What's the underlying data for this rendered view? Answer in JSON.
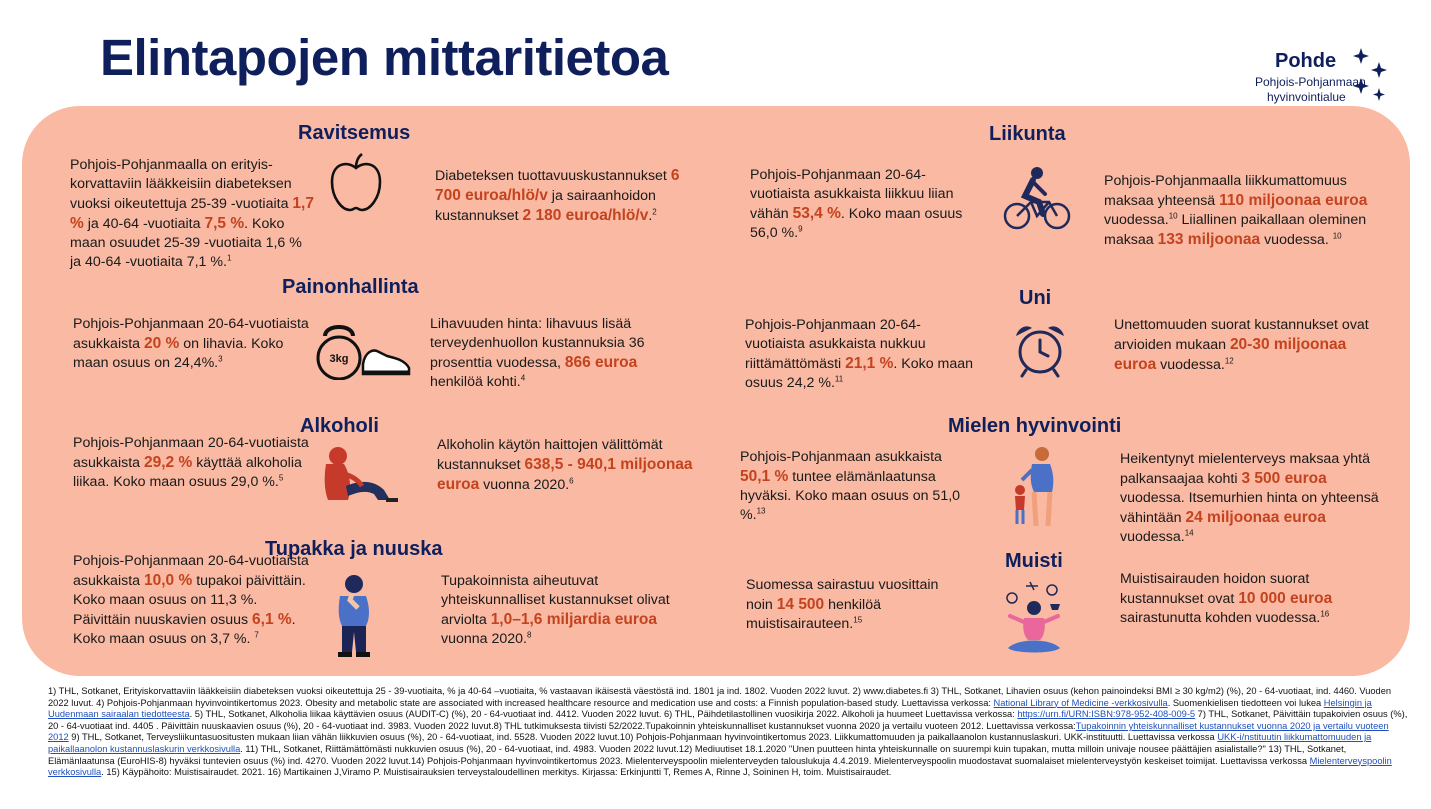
{
  "title": "Elintapojen mittaritietoa",
  "logo": {
    "name": "Pohde",
    "line1": "Pohjois-Pohjanmaan",
    "line2": "hyvinvointialue"
  },
  "colors": {
    "panel": "#f9b9a3",
    "navy": "#0f1f5c",
    "highlight": "#c4431f"
  },
  "sections": {
    "ravitsemus": {
      "title": "Ravitsemus",
      "icon": "apple-icon",
      "left": {
        "t1": "Pohjois-Pohjanmaalla on erityis-korvattaviin lääkkeisiin diabeteksen vuoksi oikeutettuja 25-39 -vuotiaita ",
        "h1": "1,7 %",
        "t2": " ja 40-64 -vuotiaita ",
        "h2": "7,5 %",
        "t3": ". Koko maan osuudet 25-39 -vuotiaita 1,6 % ja 40-64 -vuotiaita 7,1 %.",
        "sup": "1"
      },
      "right": {
        "t1": "Diabeteksen tuottavuuskustannukset ",
        "h1": "6 700 euroa/hlö/v",
        "t2": " ja sairaanhoidon kustannukset ",
        "h2": "2 180 euroa/hlö/v",
        "t3": ".",
        "sup": "2"
      }
    },
    "painonhallinta": {
      "title": "Painonhallinta",
      "icon": "kettlebell-shoe-icon",
      "weight_label": "3kg",
      "left": {
        "t1": "Pohjois-Pohjanmaan 20-64-vuotiaista asukkaista ",
        "h1": "20 %",
        "t2": " on lihavia. Koko maan osuus on 24,4%.",
        "sup": "3"
      },
      "right": {
        "t1": "Lihavuuden hinta: lihavuus lisää terveydenhuollon kustannuksia 36 prosenttia vuodessa, ",
        "h1": "866 euroa",
        "t2": " henkilöä kohti.",
        "sup": "4"
      }
    },
    "alkoholi": {
      "title": "Alkoholi",
      "icon": "sitting-person-icon",
      "left": {
        "t1": "Pohjois-Pohjanmaan 20-64-vuotiaista asukkaista ",
        "h1": "29,2 %",
        "t2": " käyttää alkoholia liikaa. Koko maan osuus 29,0 %.",
        "sup": "5"
      },
      "right": {
        "t1": "Alkoholin käytön haittojen välittömät kustannukset ",
        "h1": "638,5 - 940,1 miljoonaa euroa",
        "t2": " vuonna 2020.",
        "sup": "6"
      }
    },
    "tupakka": {
      "title": "Tupakka ja nuuska",
      "icon": "thinking-person-icon",
      "left": {
        "t1": "Pohjois-Pohjanmaan 20-64-vuotiaista asukkaista ",
        "h1": "10,0 %",
        "t2": " tupakoi päivittäin. Koko maan osuus on 11,3 %. Päivittäin nuuskavien osuus ",
        "h2": "6,1 %",
        "t3": ". Koko maan osuus on 3,7 %. ",
        "sup": "7"
      },
      "right": {
        "t1": "Tupakoinnista aiheutuvat yhteiskunnalliset kustannukset olivat arviolta ",
        "h1": "1,0–1,6 miljardia euroa",
        "t2": " vuonna 2020.",
        "sup": "8"
      }
    },
    "liikunta": {
      "title": "Liikunta",
      "icon": "cyclist-icon",
      "left": {
        "t1": "Pohjois-Pohjanmaan 20-64-vuotiaista asukkaista liikkuu liian vähän ",
        "h1": "53,4 %",
        "t2": ". Koko maan osuus 56,0 %.",
        "sup": "9"
      },
      "right": {
        "t1": "Pohjois-Pohjanmaalla liikkumattomuus maksaa yhteensä ",
        "h1": "110 miljoonaa euroa",
        "t2": " vuodessa.",
        "sup1": "10",
        "t3": " Liiallinen paikallaan oleminen maksaa ",
        "h2": "133 miljoonaa",
        "t4": " vuodessa. ",
        "sup2": "10"
      }
    },
    "uni": {
      "title": "Uni",
      "icon": "alarm-clock-icon",
      "left": {
        "t1": "Pohjois-Pohjanmaan 20-64-vuotiaista asukkaista nukkuu riittämättömästi ",
        "h1": "21,1 %",
        "t2": ". Koko maan osuus 24,2 %.",
        "sup": "11"
      },
      "right": {
        "t1": "Unettomuuden suorat kustannukset ovat arvioiden mukaan ",
        "h1": "20-30 miljoonaa euroa",
        "t2": " vuodessa.",
        "sup": "12"
      }
    },
    "mieli": {
      "title": "Mielen hyvinvointi",
      "icon": "parent-child-icon",
      "left": {
        "t1": "Pohjois-Pohjanmaan asukkaista ",
        "h1": "50,1 %",
        "t2": " tuntee elämänlaatunsa hyväksi. Koko maan osuus on 51,0 %.",
        "sup": "13"
      },
      "right": {
        "t1": "Heikentynyt mielenterveys maksaa yhtä palkansaajaa kohti ",
        "h1": "3 500 euroa",
        "t2": " vuodessa. Itsemurhien hinta on yhteensä vähintään ",
        "h2": "24 miljoonaa euroa",
        "t3": " vuodessa.",
        "sup": "14"
      }
    },
    "muisti": {
      "title": "Muisti",
      "icon": "meditating-person-icon",
      "left": {
        "t1": "Suomessa sairastuu vuosittain noin ",
        "h1": "14 500",
        "t2": " henkilöä muistisairauteen.",
        "sup": "15"
      },
      "right": {
        "t1": "Muistisairauden hoidon suorat kustannukset ovat ",
        "h1": "10 000 euroa",
        "t2": " sairastunutta kohden vuodessa.",
        "sup": "16"
      }
    }
  },
  "footnotes": {
    "p1": "1) THL, Sotkanet, Erityiskorvattaviin lääkkeisiin diabeteksen vuoksi oikeutettuja 25 - 39-vuotiaita, % ja 40-64 –vuotiaita, % vastaavan ikäisestä väestöstä ind. 1801 ja ind. 1802. Vuoden 2022 luvut. 2) www.diabetes.fi 3) THL, Sotkanet, Lihavien osuus (kehon painoindeksi BMI ≥ 30 kg/m2) (%), 20 - 64-vuotiaat, ind. 4460. Vuoden 2022 luvut. 4) Pohjois-Pohjanmaan hyvinvointikertomus 2023. Obesity and metabolic state are associated with increased healthcare resource and medication use and costs: a Finnish population-based study. Luettavissa verkossa: ",
    "l1": "National Library of Medicine -verkkosivulla",
    "p2": ". Suomenkielisen tiedotteen voi lukea ",
    "l2": "Helsingin ja Uudenmaan sairaalan tiedotteesta",
    "p3": ". 5) THL, Sotkanet, Alkoholia liikaa käyttävien osuus (AUDIT-C) (%), 20 - 64-vuotiaat ind. 4412. Vuoden 2022 luvut. 6) THL, Päihdetilastollinen vuosikirja 2022. Alkoholi ja huumeet Luettavissa verkossa: ",
    "l3": "https://urn.fi/URN:ISBN:978-952-408-009-5",
    "p4": " 7) THL, Sotkanet, Päivittäin tupakoivien osuus (%), 20 - 64-vuotiaat ind. 4405 . Päivittäin nuuskaavien osuus (%), 20 - 64-vuotiaat ind. 3983. Vuoden 2022 luvut.8) THL tutkimuksesta tiivisti 52/2022.Tupakoinnin yhteiskunnalliset kustannukset vuonna 2020 ja vertailu vuoteen 2012. Luettavissa verkossa:",
    "l4": "Tupakoinnin yhteiskunnalliset kustannukset vuonna 2020 ja vertailu vuoteen 2012",
    "p5": " 9) THL, Sotkanet, Terveysliikuntasuositusten mukaan liian vähän liikkuvien osuus (%), 20 - 64-vuotiaat, ind. 5528. Vuoden 2022 luvut.10) Pohjois-Pohjanmaan hyvinvointikertomus 2023. Liikkumattomuuden ja paikallaanolon kustannuslaskuri. UKK-instituutti. Luettavissa verkossa ",
    "l5": "UKK-i/nstituutin liikkumattomuuden ja paikallaanolon kustannuslaskurin verkkosivulla",
    "p6": ". 11) THL, Sotkanet, Riittämättömästi nukkuvien osuus (%), 20 - 64-vuotiaat, ind. 4983. Vuoden 2022 luvut.12) Mediuutiset 18.1.2020 \"Unen puutteen hinta yhteiskunnalle on suurempi kuin tupakan, mutta milloin univaje nousee päättäjien asialistalle?\" 13) THL, Sotkanet, Elämänlaatunsa (EuroHIS-8) hyväksi tuntevien osuus (%) ind. 4270. Vuoden 2022 luvut.14) Pohjois-Pohjanmaan hyvinvointikertomus 2023. Mielenterveyspoolin mielenterveyden talouslukuja 4.4.2019. Mielenterveyspoolin muodostavat suomalaiset mielenterveystyön keskeiset toimijat. Luettavissa verkossa ",
    "l6": "Mielenterveyspoolin verkkosivulla",
    "p7": ". 15) Käypähoito: Muistisairaudet. 2021. 16) Martikainen J,Viramo P. Muistisairauksien terveystaloudellinen merkitys. Kirjassa: Erkinjuntti T, Remes A, Rinne J, Soininen H, toim. Muistisairaudet."
  }
}
